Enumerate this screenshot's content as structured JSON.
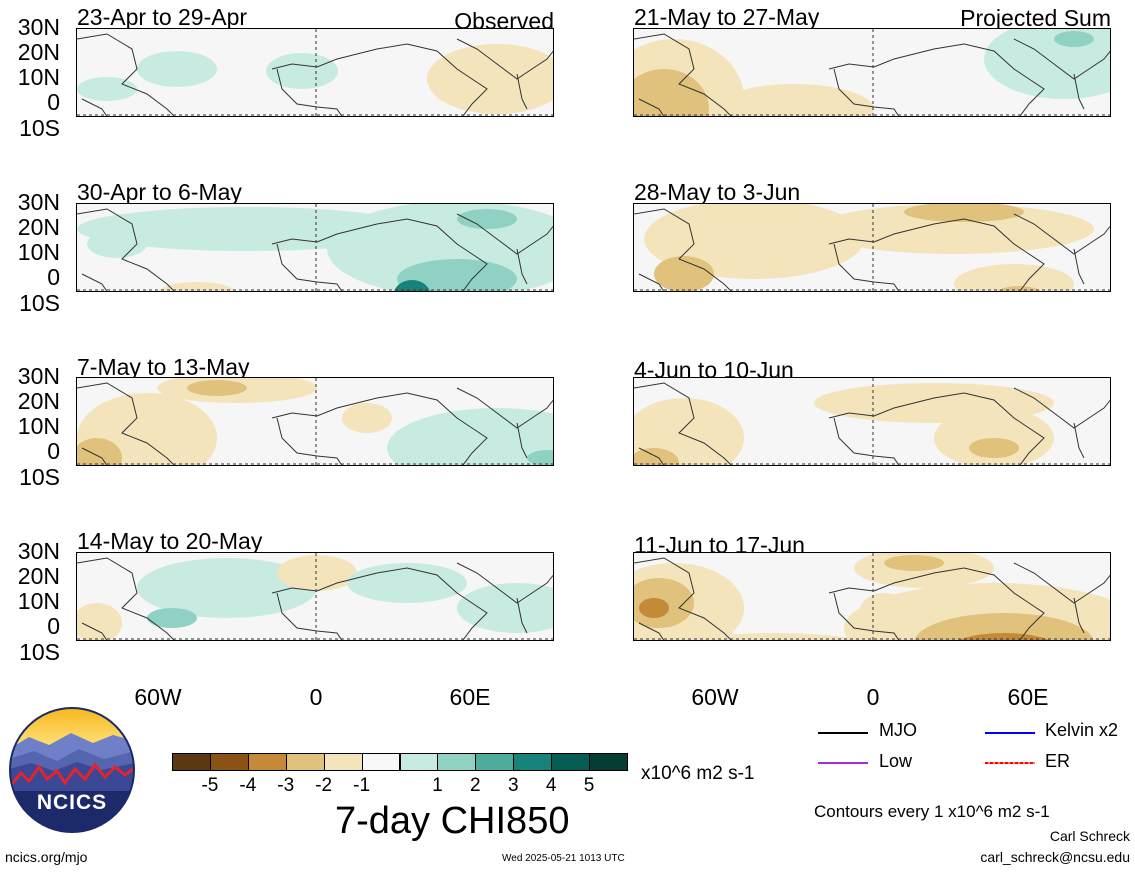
{
  "panels": {
    "observed": [
      {
        "title": "23-Apr to 29-Apr",
        "tag": "Observed"
      },
      {
        "title": "30-Apr to 6-May"
      },
      {
        "title": "7-May to 13-May"
      },
      {
        "title": "14-May to 20-May"
      }
    ],
    "projected": [
      {
        "title": "21-May to 27-May",
        "tag": "Projected Sum"
      },
      {
        "title": "28-May to 3-Jun"
      },
      {
        "title": "4-Jun to 10-Jun"
      },
      {
        "title": "11-Jun to 17-Jun"
      }
    ]
  },
  "latitude_labels": [
    "30N",
    "20N",
    "10N",
    "0",
    "10S"
  ],
  "longitude_labels": [
    "60W",
    "0",
    "60E"
  ],
  "colorbar": {
    "colors": [
      "#5a3811",
      "#8b5215",
      "#c48a37",
      "#e0c27c",
      "#f4e4bc",
      "#f8f8f8",
      "#c8ebe1",
      "#8fd2c4",
      "#4fab9c",
      "#17837a",
      "#075d55",
      "#033d33"
    ],
    "ticks": [
      "-5",
      "-4",
      "-3",
      "-2",
      "-1",
      "1",
      "2",
      "3",
      "4",
      "5"
    ],
    "units": "x10^6 m2 s-1",
    "title": "7-day CHI850"
  },
  "legend": {
    "items": [
      {
        "label": "MJO",
        "color": "#000000"
      },
      {
        "label": "Kelvin x2",
        "color": "#0000ff"
      },
      {
        "label": "Low",
        "color": "#9b30e6"
      },
      {
        "label": "ER",
        "color": "#ff0000"
      }
    ],
    "contours_note": "Contours every 1 x10^6 m2 s-1"
  },
  "footer": {
    "logo_text": "NCICS",
    "site": "ncics.org/mjo",
    "timestamp": "Wed 2025-05-21 1013 UTC",
    "author": "Carl Schreck",
    "email": "carl_schreck@ncsu.edu"
  }
}
